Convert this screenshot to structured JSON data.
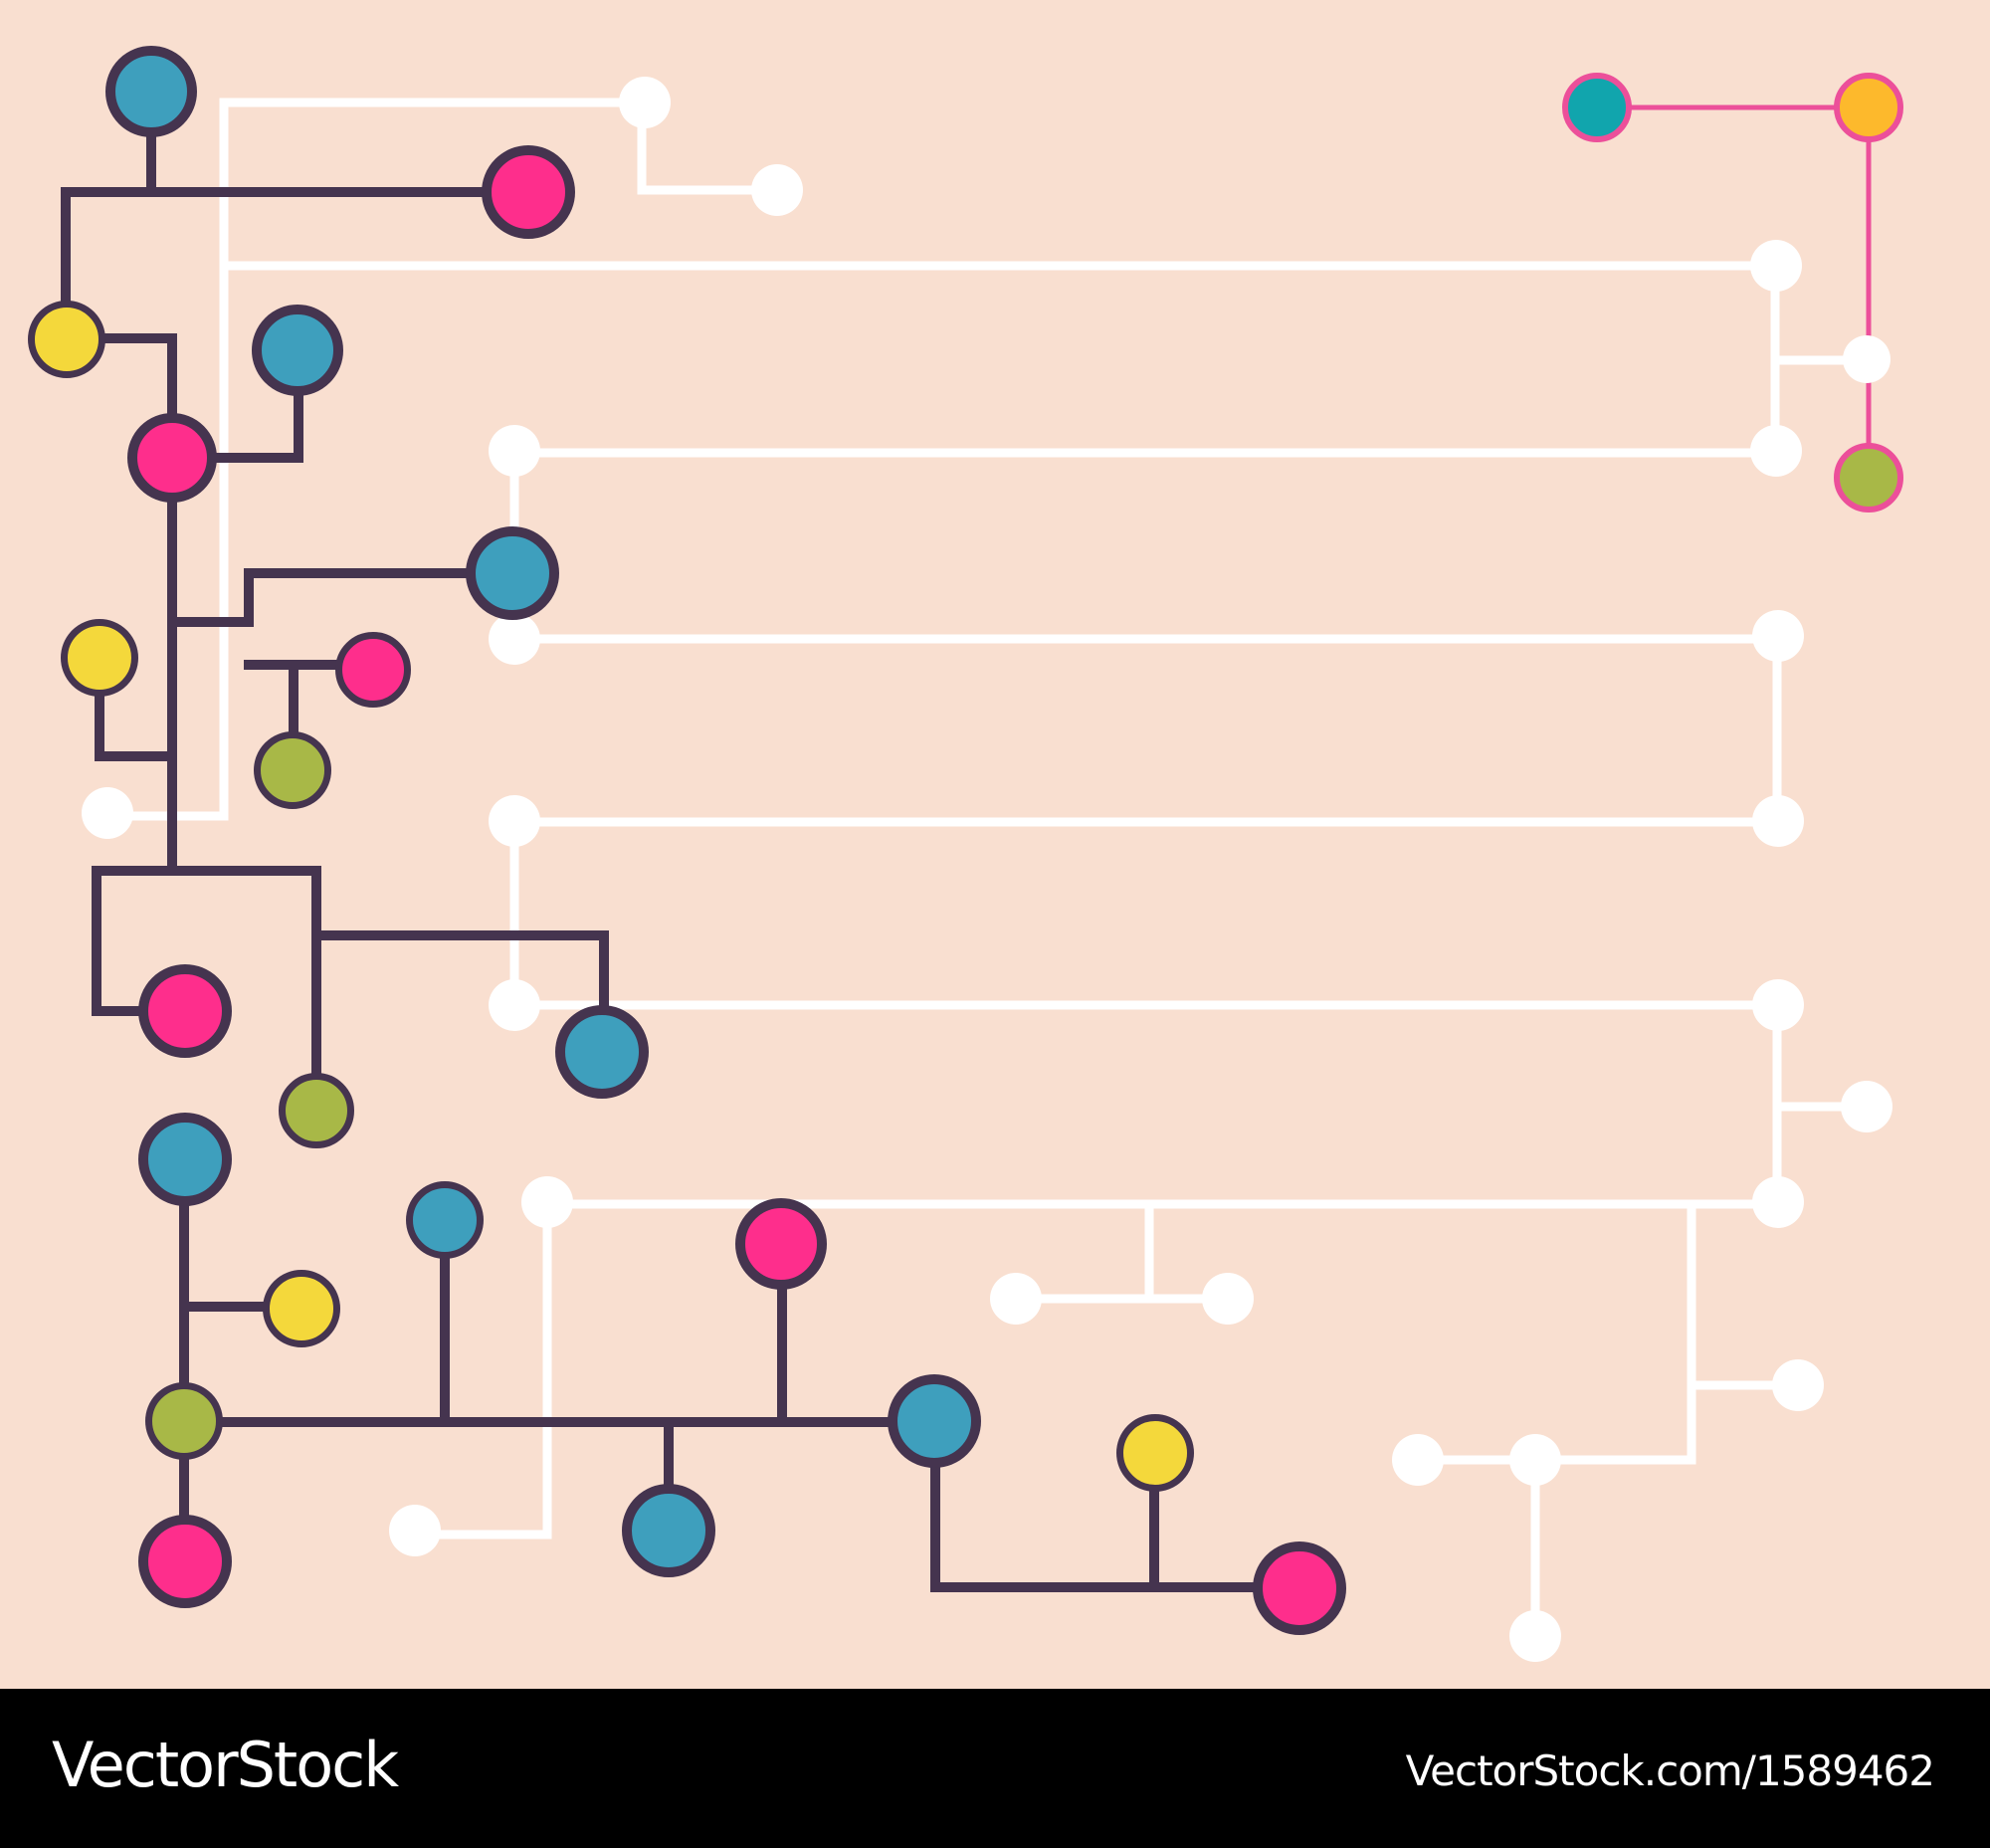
{
  "colors": {
    "background": "#f9dfd0",
    "dark_line": "#45344f",
    "white_line": "#ffffff",
    "accent_line": "#ec4f9a",
    "blue": "#3e9fbd",
    "pink": "#fe2e8c",
    "yellow": "#f4d83b",
    "green": "#a8b847",
    "teal": "#11a5ad",
    "orange": "#fdb92c",
    "footer": "#000000"
  },
  "footer": {
    "brand": "VectorStock",
    "url": "VectorStock.com/1589462"
  }
}
